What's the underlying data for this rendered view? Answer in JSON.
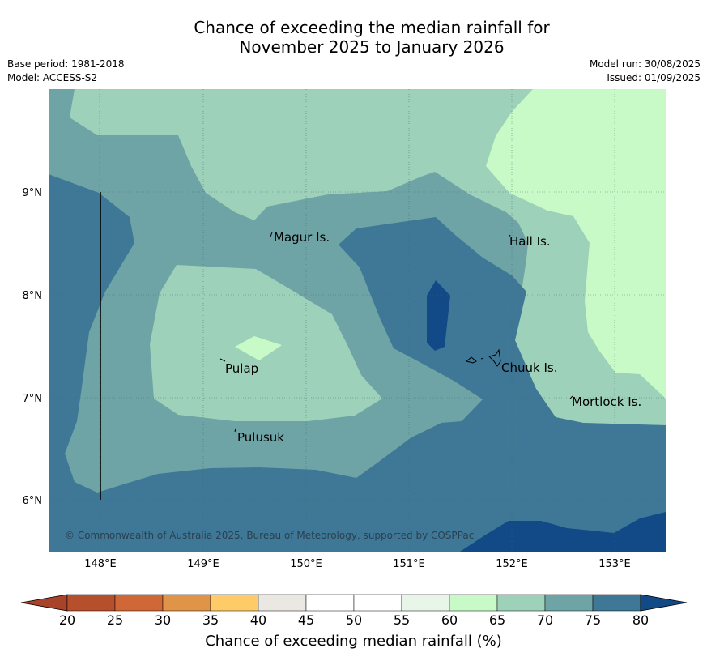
{
  "title": {
    "line1": "Chance of exceeding the median rainfall for",
    "line2": "November 2025 to January 2026"
  },
  "meta": {
    "base_period": "Base period: 1981-2018",
    "model": "Model: ACCESS-S2",
    "model_run": "Model run: 30/08/2025",
    "issued": "Issued: 01/09/2025"
  },
  "map": {
    "lat_ticks": [
      "9°N",
      "8°N",
      "7°N",
      "6°N"
    ],
    "lon_ticks": [
      "148°E",
      "149°E",
      "150°E",
      "151°E",
      "152°E",
      "153°E"
    ],
    "places": [
      "Magur Is.",
      "Hall Is.",
      "Pulap",
      "Chuuk Is.",
      "Mortlock Is.",
      "Pulusuk"
    ],
    "copyright": "© Commonwealth of Australia 2025, Bureau of Meteorology, supported by COSPPac"
  },
  "colorbar": {
    "label": "Chance of exceeding median rainfall (%)",
    "ticks": [
      "20",
      "25",
      "30",
      "35",
      "40",
      "45",
      "50",
      "55",
      "60",
      "65",
      "70",
      "75",
      "80"
    ],
    "colors": [
      "#a8432a",
      "#b54f2c",
      "#d06736",
      "#e09448",
      "#fdcb67",
      "#ebe8e3",
      "#ffffff",
      "#ffffff",
      "#e8f5e9",
      "#c8fac8",
      "#9dd1b9",
      "#6ea4a6",
      "#3f7896",
      "#124a87"
    ]
  }
}
